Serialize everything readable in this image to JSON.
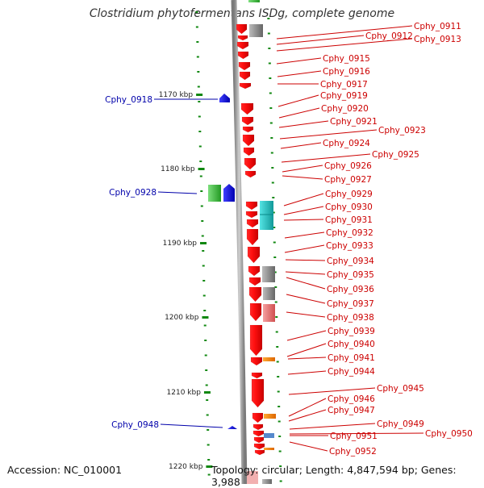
{
  "title": "Clostridium phytofermentans ISDg, complete genome",
  "footer": {
    "accession": "Accession: NC_010001",
    "topology": "Topology: circular; Length: 4,847,594 bp; Genes: 3,988"
  },
  "colors": {
    "forward_label": "#cc0000",
    "reverse_label": "#0000aa",
    "forward_gene": "#ff0000",
    "reverse_gene": "#0000ee",
    "green_gene": "#33bb33",
    "teal_gene": "#22cccc",
    "gray_gene": "#999999",
    "orange_gene": "#ff8800",
    "tick": "#118811",
    "backbone": "#999999"
  },
  "scale": {
    "unit": "kbp",
    "labels": [
      "1170 kbp",
      "1180 kbp",
      "1190 kbp",
      "1200 kbp",
      "1210 kbp",
      "1220 kbp"
    ]
  },
  "reverse_genes": [
    "Cphy_0918",
    "Cphy_0928",
    "Cphy_0948"
  ],
  "forward_genes": [
    "Cphy_0911",
    "Cphy_0912",
    "Cphy_0913",
    "Cphy_0915",
    "Cphy_0916",
    "Cphy_0917",
    "Cphy_0919",
    "Cphy_0920",
    "Cphy_0921",
    "Cphy_0923",
    "Cphy_0924",
    "Cphy_0925",
    "Cphy_0926",
    "Cphy_0927",
    "Cphy_0929",
    "Cphy_0930",
    "Cphy_0931",
    "Cphy_0932",
    "Cphy_0933",
    "Cphy_0934",
    "Cphy_0935",
    "Cphy_0936",
    "Cphy_0937",
    "Cphy_0938",
    "Cphy_0939",
    "Cphy_0940",
    "Cphy_0941",
    "Cphy_0944",
    "Cphy_0945",
    "Cphy_0946",
    "Cphy_0947",
    "Cphy_0949",
    "Cphy_0950",
    "Cphy_0951",
    "Cphy_0952"
  ]
}
